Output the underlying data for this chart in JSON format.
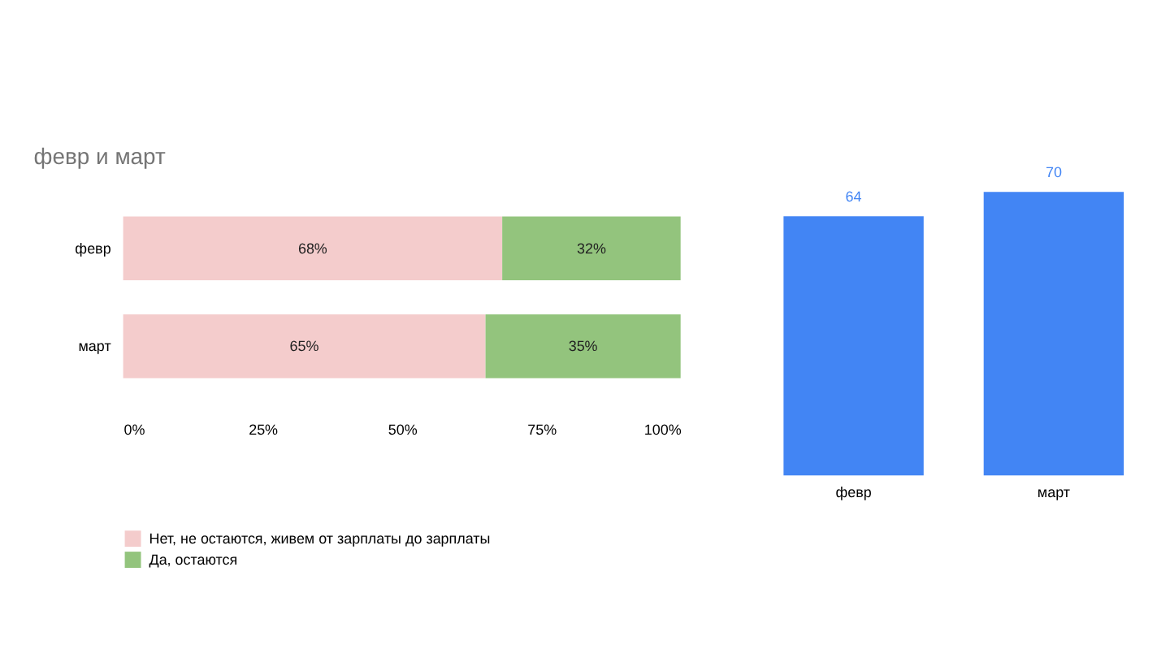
{
  "chart_data": [
    {
      "type": "bar",
      "title": "февр и март",
      "orientation": "horizontal",
      "stacked": true,
      "categories": [
        "февр",
        "март"
      ],
      "series": [
        {
          "name": "Нет, не остаются, живем от зарплаты до зарплаты",
          "color": "#f4cccc",
          "values": [
            68,
            65
          ],
          "value_labels": [
            "68%",
            "65%"
          ]
        },
        {
          "name": "Да, остаются",
          "color": "#93c47d",
          "values": [
            32,
            35
          ],
          "value_labels": [
            "32%",
            "35%"
          ]
        }
      ],
      "xlim": [
        0,
        100
      ],
      "xticks": [
        {
          "value": 0,
          "label": "0%"
        },
        {
          "value": 25,
          "label": "25%"
        },
        {
          "value": 50,
          "label": "50%"
        },
        {
          "value": 75,
          "label": "75%"
        },
        {
          "value": 100,
          "label": "100%"
        }
      ],
      "legend": "bottom",
      "grid": false
    },
    {
      "type": "bar",
      "categories": [
        "февр",
        "март"
      ],
      "values": [
        64,
        70
      ],
      "color": "#4285f4",
      "data_labels": true,
      "ylim": [
        0,
        70
      ],
      "tick_labels": "x"
    }
  ]
}
